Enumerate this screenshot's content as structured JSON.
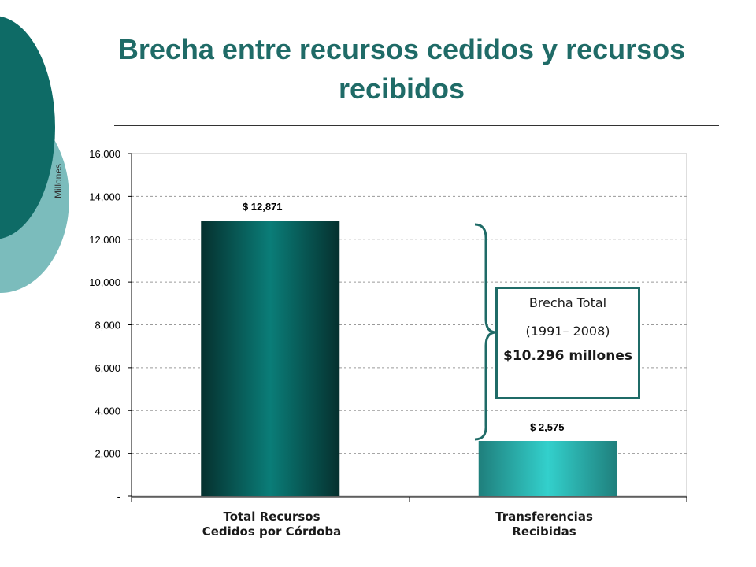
{
  "title": "Brecha entre recursos cedidos y recursos recibidos",
  "unit_label": "Millones",
  "annotation": {
    "line1": "Brecha Total",
    "line2": "(1991– 2008)",
    "line3": "$10.296 millones"
  },
  "colors": {
    "title": "#1f6b67",
    "deco_dark": "#0e6b66",
    "deco_light": "#7bbcbc",
    "bar1": "#0a7d78",
    "bar2": "#2ec8c6",
    "brace": "#1f6b67"
  },
  "chart_data": {
    "type": "bar",
    "categories": [
      "Total Recursos Cedidos por Córdoba",
      "Transferencias Recibidas"
    ],
    "category_lines": [
      [
        "Total Recursos",
        "Cedidos por Córdoba"
      ],
      [
        "Transferencias",
        "Recibidas"
      ]
    ],
    "values": [
      12871,
      2575
    ],
    "data_labels": [
      "$ 12,871",
      "$ 2,575"
    ],
    "ylim": [
      0,
      16000
    ],
    "yticks": [
      0,
      2000,
      4000,
      6000,
      8000,
      10000,
      12000,
      14000,
      16000
    ],
    "ytick_labels": [
      "-",
      "2,000",
      "4,000",
      "6,000",
      "8,000",
      "10,000",
      "12.000",
      "14,000",
      "16,000"
    ],
    "grid": true
  }
}
